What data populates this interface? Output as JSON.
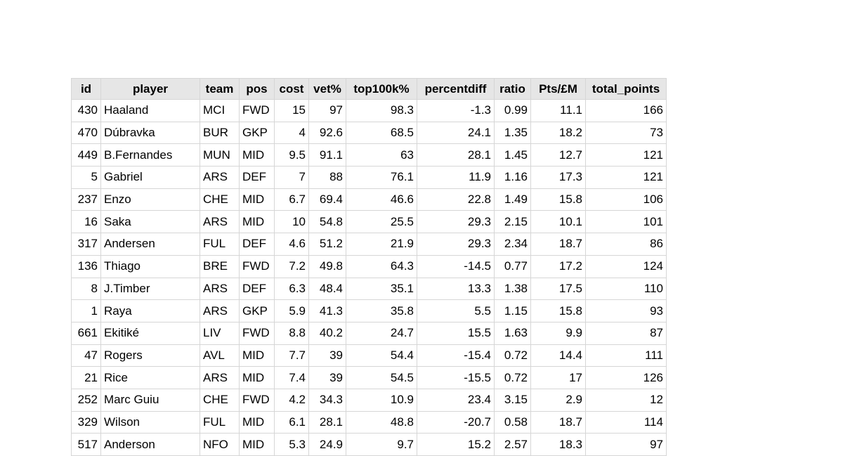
{
  "sheet": {
    "columns": [
      {
        "key": "id",
        "label": "id"
      },
      {
        "key": "player",
        "label": "player"
      },
      {
        "key": "team",
        "label": "team"
      },
      {
        "key": "pos",
        "label": "pos"
      },
      {
        "key": "cost",
        "label": "cost"
      },
      {
        "key": "vet_pct",
        "label": "vet%"
      },
      {
        "key": "top100k_pct",
        "label": "top100k%"
      },
      {
        "key": "percentdiff",
        "label": "percentdiff"
      },
      {
        "key": "ratio",
        "label": "ratio"
      },
      {
        "key": "pts_per_million",
        "label": "Pts/£M"
      },
      {
        "key": "total_points",
        "label": "total_points"
      }
    ],
    "rows": [
      [
        430,
        "Haaland",
        "MCI",
        "FWD",
        15,
        97,
        98.3,
        -1.3,
        0.99,
        11.1,
        166
      ],
      [
        470,
        "Dúbravka",
        "BUR",
        "GKP",
        4,
        92.6,
        68.5,
        24.1,
        1.35,
        18.2,
        73
      ],
      [
        449,
        "B.Fernandes",
        "MUN",
        "MID",
        9.5,
        91.1,
        63,
        28.1,
        1.45,
        12.7,
        121
      ],
      [
        5,
        "Gabriel",
        "ARS",
        "DEF",
        7,
        88,
        76.1,
        11.9,
        1.16,
        17.3,
        121
      ],
      [
        237,
        "Enzo",
        "CHE",
        "MID",
        6.7,
        69.4,
        46.6,
        22.8,
        1.49,
        15.8,
        106
      ],
      [
        16,
        "Saka",
        "ARS",
        "MID",
        10,
        54.8,
        25.5,
        29.3,
        2.15,
        10.1,
        101
      ],
      [
        317,
        "Andersen",
        "FUL",
        "DEF",
        4.6,
        51.2,
        21.9,
        29.3,
        2.34,
        18.7,
        86
      ],
      [
        136,
        "Thiago",
        "BRE",
        "FWD",
        7.2,
        49.8,
        64.3,
        -14.5,
        0.77,
        17.2,
        124
      ],
      [
        8,
        "J.Timber",
        "ARS",
        "DEF",
        6.3,
        48.4,
        35.1,
        13.3,
        1.38,
        17.5,
        110
      ],
      [
        1,
        "Raya",
        "ARS",
        "GKP",
        5.9,
        41.3,
        35.8,
        5.5,
        1.15,
        15.8,
        93
      ],
      [
        661,
        "Ekitiké",
        "LIV",
        "FWD",
        8.8,
        40.2,
        24.7,
        15.5,
        1.63,
        9.9,
        87
      ],
      [
        47,
        "Rogers",
        "AVL",
        "MID",
        7.7,
        39,
        54.4,
        -15.4,
        0.72,
        14.4,
        111
      ],
      [
        21,
        "Rice",
        "ARS",
        "MID",
        7.4,
        39,
        54.5,
        -15.5,
        0.72,
        17,
        126
      ],
      [
        252,
        "Marc Guiu",
        "CHE",
        "FWD",
        4.2,
        34.3,
        10.9,
        23.4,
        3.15,
        2.9,
        12
      ],
      [
        329,
        "Wilson",
        "FUL",
        "MID",
        6.1,
        28.1,
        48.8,
        -20.7,
        0.58,
        18.7,
        114
      ],
      [
        517,
        "Anderson",
        "NFO",
        "MID",
        5.3,
        24.9,
        9.7,
        15.2,
        2.57,
        18.3,
        97
      ]
    ],
    "colors": {
      "page_bg": "#ffffff",
      "header_bg": "#e6e6e6",
      "grid_border": "#d6d6d6",
      "text": "#000000"
    }
  }
}
